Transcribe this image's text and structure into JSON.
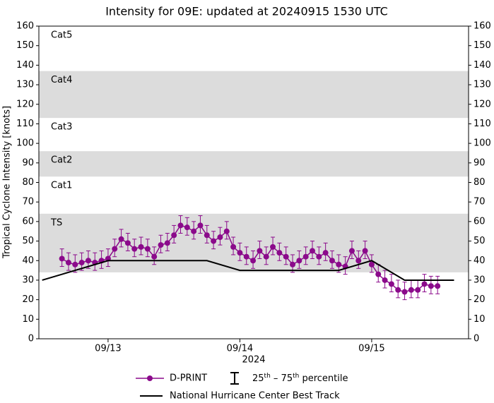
{
  "chart_data": {
    "type": "line",
    "title": "Intensity for 09E: updated at 20240915 1530 UTC",
    "ylabel": "Tropical Cyclone Intensity [knots]",
    "xlabel": "2024",
    "xlim": [
      12.475,
      15.735
    ],
    "xticks": [
      {
        "value": 13,
        "label": "09/13"
      },
      {
        "value": 14,
        "label": "09/14"
      },
      {
        "value": 15,
        "label": "09/15"
      }
    ],
    "ylim": [
      0,
      160
    ],
    "yticks": [
      0,
      10,
      20,
      30,
      40,
      50,
      60,
      70,
      80,
      90,
      100,
      110,
      120,
      130,
      140,
      150,
      160
    ],
    "bands": [
      {
        "label": "TS",
        "min": 34,
        "shaded": true
      },
      {
        "label": "Cat1",
        "min": 64,
        "shaded": false
      },
      {
        "label": "Cat2",
        "min": 83,
        "shaded": true
      },
      {
        "label": "Cat3",
        "min": 96,
        "shaded": false
      },
      {
        "label": "Cat4",
        "min": 113,
        "shaded": true
      },
      {
        "label": "Cat5",
        "min": 137,
        "shaded": false
      }
    ],
    "band_color": "#dcdcdc",
    "errorbar_legend": [
      "25",
      "th",
      " – 75",
      "th",
      " percentile"
    ],
    "series": [
      {
        "name": "D-PRINT",
        "color": "#8b0a8b",
        "x": [
          12.65,
          12.7,
          12.75,
          12.8,
          12.85,
          12.9,
          12.95,
          13.0,
          13.05,
          13.1,
          13.15,
          13.2,
          13.25,
          13.3,
          13.35,
          13.4,
          13.45,
          13.5,
          13.55,
          13.6,
          13.65,
          13.7,
          13.75,
          13.8,
          13.85,
          13.9,
          13.95,
          14.0,
          14.05,
          14.1,
          14.15,
          14.2,
          14.25,
          14.3,
          14.35,
          14.4,
          14.45,
          14.5,
          14.55,
          14.6,
          14.65,
          14.7,
          14.75,
          14.8,
          14.85,
          14.9,
          14.95,
          15.0,
          15.05,
          15.1,
          15.15,
          15.2,
          15.25,
          15.3,
          15.35,
          15.4,
          15.45,
          15.5
        ],
        "values": [
          41,
          39,
          38,
          39,
          40,
          39,
          40,
          41,
          46,
          51,
          49,
          46,
          47,
          46,
          42,
          48,
          49,
          53,
          58,
          57,
          55,
          58,
          53,
          50,
          52,
          55,
          47,
          44,
          42,
          40,
          45,
          42,
          47,
          44,
          42,
          38,
          40,
          42,
          45,
          42,
          44,
          40,
          38,
          37,
          45,
          40,
          45,
          38,
          33,
          30,
          28,
          25,
          24,
          25,
          25,
          28,
          27,
          27
        ],
        "p25": [
          37,
          35,
          34,
          35,
          36,
          35,
          36,
          37,
          42,
          47,
          45,
          42,
          43,
          42,
          38,
          44,
          45,
          49,
          54,
          53,
          51,
          54,
          49,
          46,
          48,
          51,
          43,
          40,
          38,
          36,
          41,
          38,
          43,
          40,
          38,
          34,
          36,
          38,
          41,
          38,
          40,
          36,
          34,
          33,
          41,
          36,
          41,
          34,
          29,
          26,
          24,
          21,
          20,
          21,
          21,
          24,
          23,
          23
        ],
        "p75": [
          46,
          44,
          43,
          44,
          45,
          44,
          45,
          46,
          51,
          56,
          54,
          51,
          52,
          51,
          47,
          53,
          54,
          58,
          63,
          62,
          60,
          63,
          58,
          55,
          57,
          60,
          52,
          49,
          47,
          45,
          50,
          47,
          52,
          49,
          47,
          43,
          45,
          47,
          50,
          47,
          49,
          45,
          43,
          42,
          50,
          45,
          50,
          43,
          38,
          35,
          33,
          30,
          29,
          30,
          30,
          33,
          32,
          32
        ]
      },
      {
        "name": "National Hurricane Center Best Track",
        "color": "#000000",
        "x": [
          12.5,
          13.0,
          13.75,
          14.0,
          14.75,
          15.0,
          15.25,
          15.625
        ],
        "values": [
          30,
          40,
          40,
          35,
          35,
          40,
          30,
          30
        ]
      }
    ]
  }
}
